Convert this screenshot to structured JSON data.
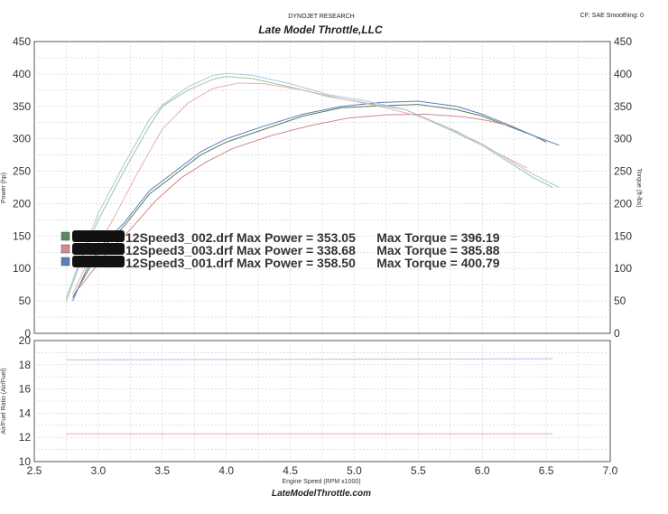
{
  "header": {
    "company": "DYNOJET RESEARCH",
    "title": "Late Model Throttle,LLC",
    "settings": "CF: SAE  Smoothing: 0"
  },
  "footer": {
    "url": "LateModelThrottle.com"
  },
  "chart_data": [
    {
      "type": "line",
      "xlabel": "Engine Speed (RPM x1000)",
      "ylabel_left": "Power (hp)",
      "ylabel_right": "Torque (ft-lbs)",
      "xlim": [
        2.5,
        7.0
      ],
      "ylim": [
        0,
        450
      ],
      "x_ticks": [
        "2.5",
        "3.0",
        "3.5",
        "4.0",
        "4.5",
        "5.0",
        "5.5",
        "6.0",
        "6.5",
        "7.0"
      ],
      "y_ticks": [
        "0",
        "50",
        "100",
        "150",
        "200",
        "250",
        "300",
        "350",
        "400",
        "450"
      ],
      "grid": true,
      "legend": [
        {
          "text": "12Speed3_002.drf Max Power = 353.05      Max Torque = 396.19",
          "color": "#5a8a5a"
        },
        {
          "text": "12Speed3_003.drf Max Power = 338.68      Max Torque = 385.88",
          "color": "#d88a8a"
        },
        {
          "text": "12Speed3_001.drf Max Power = 358.50      Max Torque = 400.79",
          "color": "#5a7fbf"
        }
      ],
      "series": [
        {
          "name": "12Speed3_002.drf",
          "measure": "power",
          "color": "#5a7a5a",
          "x": [
            2.8,
            2.9,
            3.0,
            3.2,
            3.4,
            3.6,
            3.8,
            4.0,
            4.3,
            4.6,
            4.9,
            5.2,
            5.5,
            5.8,
            6.0,
            6.2,
            6.4,
            6.5
          ],
          "y": [
            55,
            90,
            125,
            165,
            215,
            245,
            275,
            295,
            315,
            335,
            348,
            351,
            353,
            345,
            335,
            320,
            305,
            295
          ]
        },
        {
          "name": "12Speed3_003.drf",
          "measure": "power",
          "color": "#d08a8a",
          "x": [
            2.85,
            2.95,
            3.05,
            3.25,
            3.45,
            3.65,
            3.85,
            4.05,
            4.35,
            4.65,
            4.95,
            5.25,
            5.55,
            5.85,
            6.05,
            6.25
          ],
          "y": [
            70,
            95,
            120,
            160,
            205,
            240,
            265,
            285,
            305,
            320,
            332,
            337,
            338,
            334,
            328,
            318
          ]
        },
        {
          "name": "12Speed3_001.drf",
          "measure": "power",
          "color": "#5a7fbf",
          "x": [
            2.8,
            2.9,
            3.0,
            3.2,
            3.4,
            3.6,
            3.8,
            4.0,
            4.3,
            4.6,
            4.9,
            5.2,
            5.5,
            5.8,
            6.0,
            6.2,
            6.4,
            6.6
          ],
          "y": [
            50,
            95,
            130,
            170,
            220,
            250,
            280,
            300,
            320,
            338,
            350,
            356,
            358,
            350,
            338,
            322,
            305,
            290
          ]
        },
        {
          "name": "12Speed3_002.drf",
          "measure": "torque",
          "color": "#9ec49e",
          "x": [
            2.75,
            2.9,
            3.0,
            3.2,
            3.4,
            3.5,
            3.7,
            3.9,
            4.0,
            4.2,
            4.5,
            4.8,
            5.1,
            5.4,
            5.7,
            6.0,
            6.2,
            6.4,
            6.55
          ],
          "y": [
            50,
            130,
            175,
            250,
            320,
            350,
            375,
            392,
            396,
            393,
            380,
            365,
            355,
            345,
            318,
            290,
            265,
            240,
            225
          ]
        },
        {
          "name": "12Speed3_003.drf",
          "measure": "torque",
          "color": "#e8b0b0",
          "x": [
            2.8,
            2.95,
            3.1,
            3.3,
            3.5,
            3.7,
            3.9,
            4.1,
            4.3,
            4.6,
            4.9,
            5.2,
            5.5,
            5.8,
            6.0,
            6.2,
            6.35
          ],
          "y": [
            60,
            125,
            170,
            245,
            315,
            355,
            378,
            386,
            385,
            375,
            362,
            350,
            335,
            312,
            290,
            270,
            255
          ]
        },
        {
          "name": "12Speed3_001.drf",
          "measure": "torque",
          "color": "#a9c6e6",
          "x": [
            2.75,
            2.9,
            3.0,
            3.2,
            3.4,
            3.5,
            3.7,
            3.9,
            4.0,
            4.2,
            4.5,
            4.8,
            5.1,
            5.4,
            5.7,
            6.0,
            6.2,
            6.4,
            6.6
          ],
          "y": [
            55,
            135,
            185,
            260,
            330,
            352,
            380,
            398,
            401,
            398,
            385,
            368,
            358,
            345,
            320,
            292,
            268,
            245,
            225
          ]
        }
      ]
    },
    {
      "type": "line",
      "ylabel": "Air/Fuel Ratio (Air/Fuel)",
      "xlim": [
        2.5,
        7.0
      ],
      "ylim": [
        10,
        20
      ],
      "y_ticks": [
        "10",
        "12",
        "14",
        "16",
        "18",
        "20"
      ],
      "grid": true,
      "series": [
        {
          "name": "A/F",
          "color": "#a9c6e6",
          "x": [
            2.75,
            6.55
          ],
          "y": [
            18.4,
            18.5
          ]
        },
        {
          "name": "A/F",
          "color": "#e8b0b0",
          "x": [
            2.75,
            6.55
          ],
          "y": [
            12.3,
            12.3
          ]
        }
      ]
    }
  ]
}
